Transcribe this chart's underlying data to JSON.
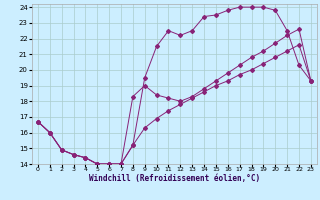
{
  "xlabel": "Windchill (Refroidissement éolien,°C)",
  "bg_color": "#cceeff",
  "grid_color": "#aacccc",
  "line_color": "#882277",
  "xlim": [
    -0.5,
    23.5
  ],
  "ylim": [
    14,
    24.2
  ],
  "yticks": [
    14,
    15,
    16,
    17,
    18,
    19,
    20,
    21,
    22,
    23,
    24
  ],
  "xticks": [
    0,
    1,
    2,
    3,
    4,
    5,
    6,
    7,
    8,
    9,
    10,
    11,
    12,
    13,
    14,
    15,
    16,
    17,
    18,
    19,
    20,
    21,
    22,
    23
  ],
  "curve1_x": [
    0,
    1,
    2,
    3,
    4,
    5,
    6,
    7,
    8,
    9,
    10,
    11,
    12,
    13,
    14,
    15,
    16,
    17,
    18,
    19,
    20,
    21,
    22,
    23
  ],
  "curve1_y": [
    16.7,
    16.0,
    14.9,
    14.6,
    14.4,
    14.0,
    14.0,
    14.0,
    15.2,
    19.5,
    21.5,
    22.5,
    22.2,
    22.5,
    23.4,
    23.5,
    23.8,
    24.0,
    24.0,
    24.0,
    23.8,
    22.5,
    20.3,
    19.3
  ],
  "curve2_x": [
    0,
    1,
    2,
    3,
    4,
    5,
    6,
    7,
    8,
    9,
    10,
    11,
    12,
    13,
    14,
    15,
    16,
    17,
    18,
    19,
    20,
    21,
    22,
    23
  ],
  "curve2_y": [
    16.7,
    16.0,
    14.9,
    14.6,
    14.4,
    14.0,
    14.0,
    14.0,
    18.3,
    19.0,
    18.4,
    18.2,
    18.0,
    18.3,
    18.8,
    19.3,
    19.8,
    20.3,
    20.8,
    21.2,
    21.7,
    22.2,
    22.6,
    19.3
  ],
  "curve3_x": [
    0,
    1,
    2,
    3,
    4,
    5,
    6,
    7,
    8,
    9,
    10,
    11,
    12,
    13,
    14,
    15,
    16,
    17,
    18,
    19,
    20,
    21,
    22,
    23
  ],
  "curve3_y": [
    16.7,
    16.0,
    14.9,
    14.6,
    14.4,
    14.0,
    14.0,
    14.0,
    15.2,
    16.3,
    16.9,
    17.4,
    17.8,
    18.2,
    18.6,
    19.0,
    19.3,
    19.7,
    20.0,
    20.4,
    20.8,
    21.2,
    21.6,
    19.3
  ]
}
